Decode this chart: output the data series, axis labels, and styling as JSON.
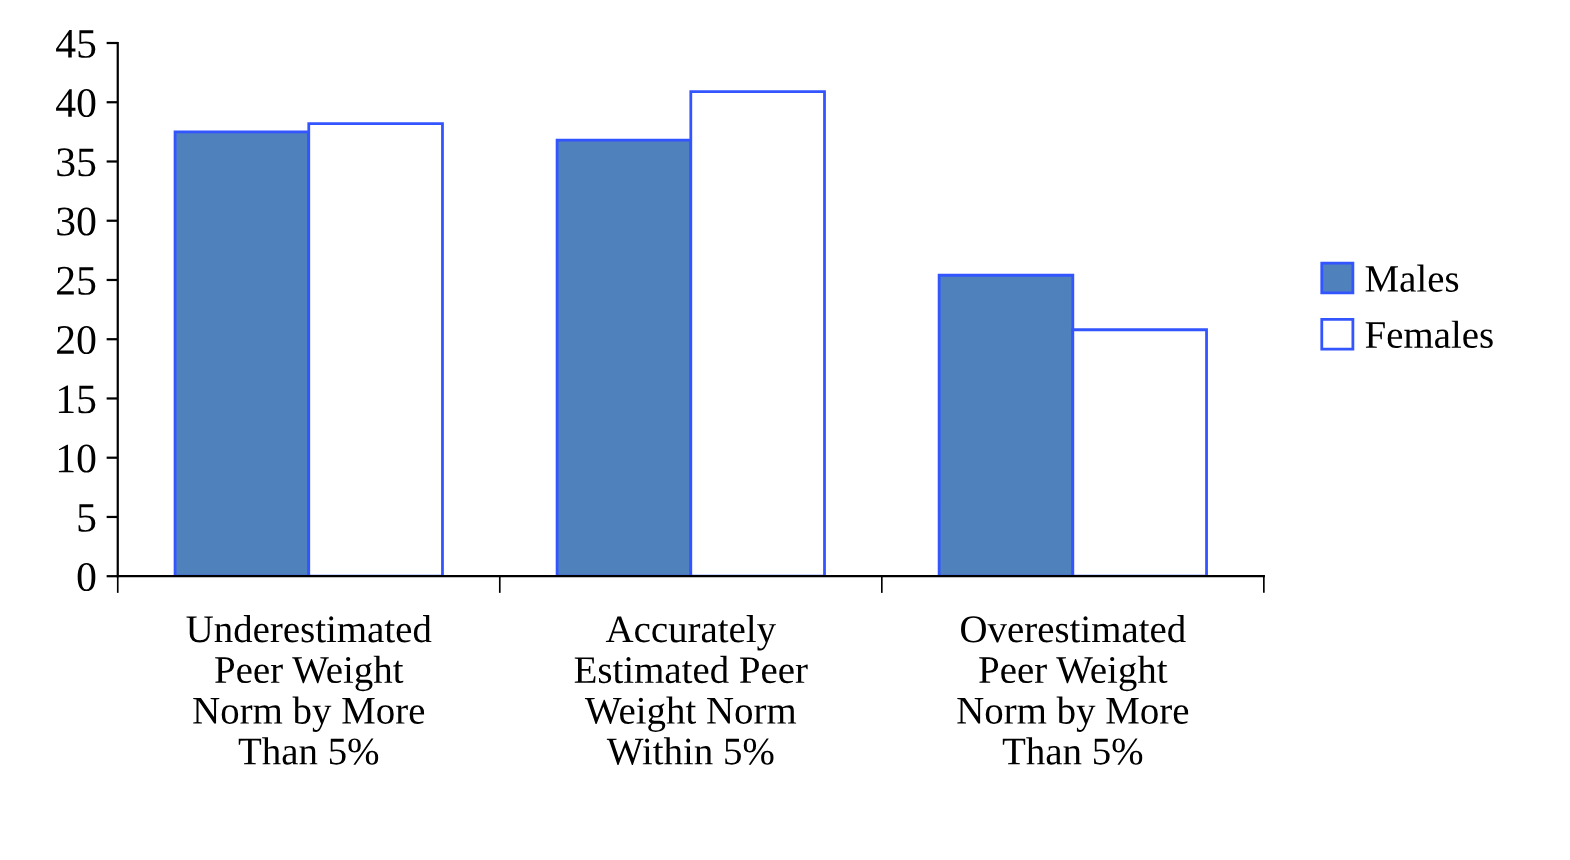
{
  "chart_data": {
    "type": "bar",
    "categories": [
      "Underestimated\nPeer Weight\nNorm by More\nThan 5%",
      "Accurately\nEstimated Peer\nWeight Norm\nWithin 5%",
      "Overestimated\nPeer Weight\nNorm by More\nThan 5%"
    ],
    "series": [
      {
        "name": "Males",
        "color": "#4f81bd",
        "values": [
          37.5,
          36.8,
          25.4
        ]
      },
      {
        "name": "Females",
        "color": "#ffffff",
        "values": [
          38.2,
          40.9,
          20.8
        ]
      }
    ],
    "ylim": [
      0,
      45
    ],
    "yticks": [
      0,
      5,
      10,
      15,
      20,
      25,
      30,
      35,
      40,
      45
    ],
    "grid": false,
    "legend": "right"
  }
}
